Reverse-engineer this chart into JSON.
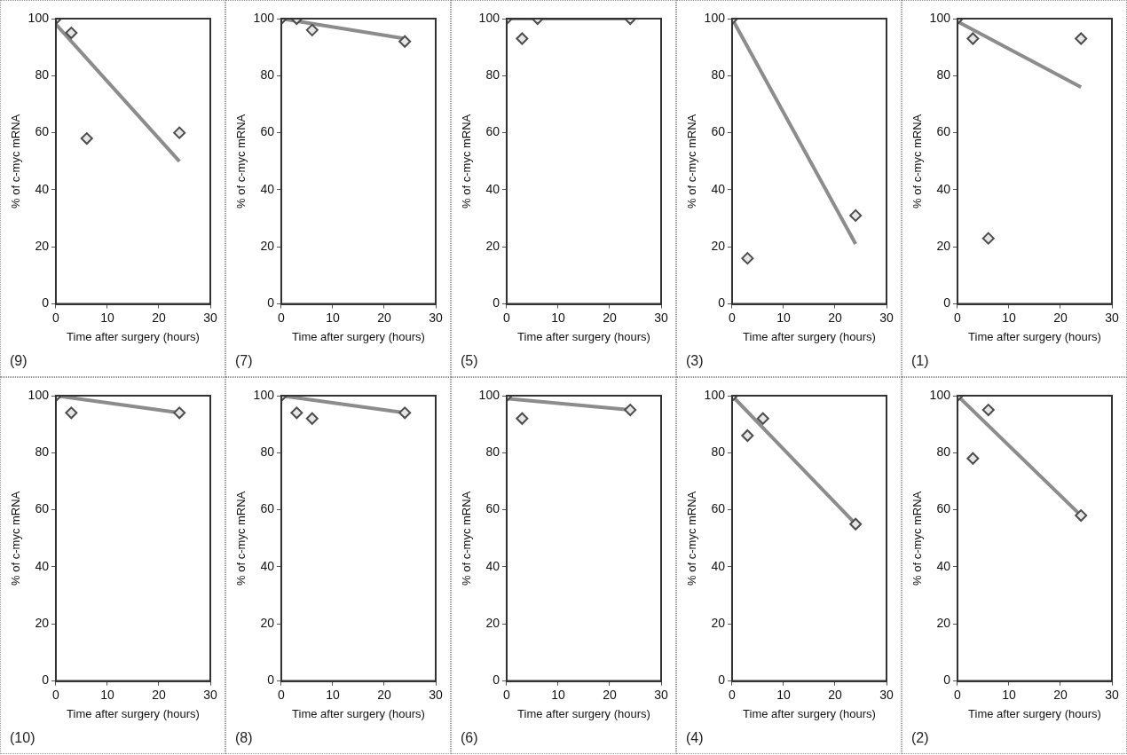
{
  "chart_data": [
    {
      "type": "scatter",
      "title": "(1)",
      "xlabel": "Time after surgery (hours)",
      "ylabel": "% of c-myc mRNA",
      "xlim": [
        0,
        30
      ],
      "xticks": [
        0,
        10,
        20,
        30
      ],
      "ylim": [
        0,
        100
      ],
      "yticks": [
        0,
        20,
        40,
        60,
        80,
        100
      ],
      "legend": false,
      "series": [
        {
          "type": "line",
          "color": "#8c8c8c",
          "x": [
            0,
            24
          ],
          "values": [
            99,
            76
          ],
          "marker": "none"
        },
        {
          "type": "scatter",
          "color": "#4d4d4d",
          "x": [
            0,
            3,
            6,
            24
          ],
          "values": [
            100,
            93,
            23,
            93
          ],
          "marker": "diamond"
        }
      ]
    },
    {
      "type": "scatter",
      "title": "(2)",
      "xlabel": "Time after surgery (hours)",
      "ylabel": "% of c-myc mRNA",
      "xlim": [
        0,
        30
      ],
      "xticks": [
        0,
        10,
        20,
        30
      ],
      "ylim": [
        0,
        100
      ],
      "yticks": [
        0,
        20,
        40,
        60,
        80,
        100
      ],
      "legend": false,
      "series": [
        {
          "type": "line",
          "color": "#8c8c8c",
          "x": [
            0,
            24
          ],
          "values": [
            100,
            58
          ],
          "marker": "none"
        },
        {
          "type": "scatter",
          "color": "#4d4d4d",
          "x": [
            0,
            3,
            6,
            24
          ],
          "values": [
            100,
            78,
            95,
            58
          ],
          "marker": "diamond"
        }
      ]
    },
    {
      "type": "scatter",
      "title": "(3)",
      "xlabel": "Time after surgery (hours)",
      "ylabel": "% of c-myc mRNA",
      "xlim": [
        0,
        30
      ],
      "xticks": [
        0,
        10,
        20,
        30
      ],
      "ylim": [
        0,
        100
      ],
      "yticks": [
        0,
        20,
        40,
        60,
        80,
        100
      ],
      "legend": false,
      "series": [
        {
          "type": "line",
          "color": "#8c8c8c",
          "x": [
            0,
            24
          ],
          "values": [
            100,
            21
          ],
          "marker": "none"
        },
        {
          "type": "scatter",
          "color": "#4d4d4d",
          "x": [
            0,
            3,
            24
          ],
          "values": [
            100,
            16,
            31
          ],
          "marker": "diamond"
        }
      ]
    },
    {
      "type": "scatter",
      "title": "(4)",
      "xlabel": "Time after surgery (hours)",
      "ylabel": "% of c-myc mRNA",
      "xlim": [
        0,
        30
      ],
      "xticks": [
        0,
        10,
        20,
        30
      ],
      "ylim": [
        0,
        100
      ],
      "yticks": [
        0,
        20,
        40,
        60,
        80,
        100
      ],
      "legend": false,
      "series": [
        {
          "type": "line",
          "color": "#8c8c8c",
          "x": [
            0,
            24
          ],
          "values": [
            100,
            55
          ],
          "marker": "none"
        },
        {
          "type": "scatter",
          "color": "#4d4d4d",
          "x": [
            0,
            3,
            6,
            24
          ],
          "values": [
            100,
            86,
            92,
            55
          ],
          "marker": "diamond"
        }
      ]
    },
    {
      "type": "scatter",
      "title": "(5)",
      "xlabel": "Time after surgery (hours)",
      "ylabel": "% of c-myc mRNA",
      "xlim": [
        0,
        30
      ],
      "xticks": [
        0,
        10,
        20,
        30
      ],
      "ylim": [
        0,
        100
      ],
      "yticks": [
        0,
        20,
        40,
        60,
        80,
        100
      ],
      "legend": false,
      "series": [
        {
          "type": "line",
          "color": "#8c8c8c",
          "x": [
            0,
            24
          ],
          "values": [
            100,
            100
          ],
          "marker": "none"
        },
        {
          "type": "scatter",
          "color": "#4d4d4d",
          "x": [
            0,
            3,
            6,
            24
          ],
          "values": [
            100,
            93,
            100,
            100
          ],
          "marker": "diamond"
        }
      ]
    },
    {
      "type": "scatter",
      "title": "(6)",
      "xlabel": "Time after surgery (hours)",
      "ylabel": "% of c-myc mRNA",
      "xlim": [
        0,
        30
      ],
      "xticks": [
        0,
        10,
        20,
        30
      ],
      "ylim": [
        0,
        100
      ],
      "yticks": [
        0,
        20,
        40,
        60,
        80,
        100
      ],
      "legend": false,
      "series": [
        {
          "type": "line",
          "color": "#8c8c8c",
          "x": [
            0,
            24
          ],
          "values": [
            99,
            95
          ],
          "marker": "none"
        },
        {
          "type": "scatter",
          "color": "#4d4d4d",
          "x": [
            0,
            3,
            24
          ],
          "values": [
            100,
            92,
            95
          ],
          "marker": "diamond"
        }
      ]
    },
    {
      "type": "scatter",
      "title": "(7)",
      "xlabel": "Time after surgery (hours)",
      "ylabel": "% of c-myc mRNA",
      "xlim": [
        0,
        30
      ],
      "xticks": [
        0,
        10,
        20,
        30
      ],
      "ylim": [
        0,
        100
      ],
      "yticks": [
        0,
        20,
        40,
        60,
        80,
        100
      ],
      "legend": false,
      "series": [
        {
          "type": "line",
          "color": "#8c8c8c",
          "x": [
            0,
            24
          ],
          "values": [
            100,
            93
          ],
          "marker": "none"
        },
        {
          "type": "scatter",
          "color": "#4d4d4d",
          "x": [
            0,
            3,
            6,
            24
          ],
          "values": [
            100,
            100,
            96,
            92
          ],
          "marker": "diamond"
        }
      ]
    },
    {
      "type": "scatter",
      "title": "(8)",
      "xlabel": "Time after surgery (hours)",
      "ylabel": "% of c-myc mRNA",
      "xlim": [
        0,
        30
      ],
      "xticks": [
        0,
        10,
        20,
        30
      ],
      "ylim": [
        0,
        100
      ],
      "yticks": [
        0,
        20,
        40,
        60,
        80,
        100
      ],
      "legend": false,
      "series": [
        {
          "type": "line",
          "color": "#8c8c8c",
          "x": [
            0,
            24
          ],
          "values": [
            100,
            94
          ],
          "marker": "none"
        },
        {
          "type": "scatter",
          "color": "#4d4d4d",
          "x": [
            0,
            3,
            6,
            24
          ],
          "values": [
            100,
            94,
            92,
            94
          ],
          "marker": "diamond"
        }
      ]
    },
    {
      "type": "scatter",
      "title": "(9)",
      "xlabel": "Time after surgery (hours)",
      "ylabel": "% of c-myc mRNA",
      "xlim": [
        0,
        30
      ],
      "xticks": [
        0,
        10,
        20,
        30
      ],
      "ylim": [
        0,
        100
      ],
      "yticks": [
        0,
        20,
        40,
        60,
        80,
        100
      ],
      "legend": false,
      "series": [
        {
          "type": "line",
          "color": "#8c8c8c",
          "x": [
            0,
            24
          ],
          "values": [
            98,
            50
          ],
          "marker": "none"
        },
        {
          "type": "scatter",
          "color": "#4d4d4d",
          "x": [
            0,
            3,
            6,
            24
          ],
          "values": [
            100,
            95,
            58,
            60
          ],
          "marker": "diamond"
        }
      ]
    },
    {
      "type": "scatter",
      "title": "(10)",
      "xlabel": "Time after surgery (hours)",
      "ylabel": "% of c-myc mRNA",
      "xlim": [
        0,
        30
      ],
      "xticks": [
        0,
        10,
        20,
        30
      ],
      "ylim": [
        0,
        100
      ],
      "yticks": [
        0,
        20,
        40,
        60,
        80,
        100
      ],
      "legend": false,
      "series": [
        {
          "type": "line",
          "color": "#8c8c8c",
          "x": [
            0,
            24
          ],
          "values": [
            100,
            94
          ],
          "marker": "none"
        },
        {
          "type": "scatter",
          "color": "#4d4d4d",
          "x": [
            0,
            3,
            24
          ],
          "values": [
            100,
            94,
            94
          ],
          "marker": "diamond"
        }
      ]
    }
  ]
}
